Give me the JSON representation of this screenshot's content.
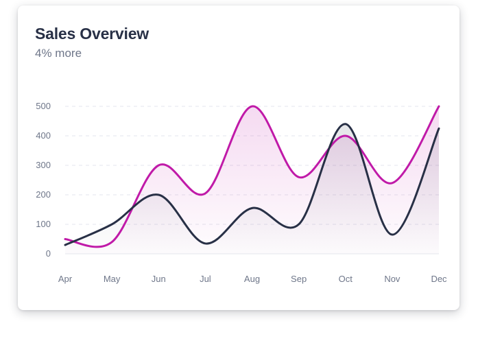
{
  "card": {
    "title": "Sales Overview",
    "subtitle": "4% more"
  },
  "chart_data": {
    "type": "area",
    "title": "Sales Overview",
    "subtitle": "4% more",
    "xlabel": "",
    "ylabel": "",
    "categories": [
      "Apr",
      "May",
      "Jun",
      "Jul",
      "Aug",
      "Sep",
      "Oct",
      "Nov",
      "Dec"
    ],
    "y_ticks": [
      0,
      100,
      200,
      300,
      400,
      500
    ],
    "ylim": [
      0,
      500
    ],
    "grid": true,
    "legend": "none",
    "series": [
      {
        "color": "#c01aa8",
        "values": [
          50,
          40,
          300,
          205,
          500,
          260,
          400,
          240,
          500
        ]
      },
      {
        "color": "#283046",
        "values": [
          30,
          100,
          200,
          35,
          155,
          100,
          440,
          65,
          425
        ]
      }
    ]
  }
}
